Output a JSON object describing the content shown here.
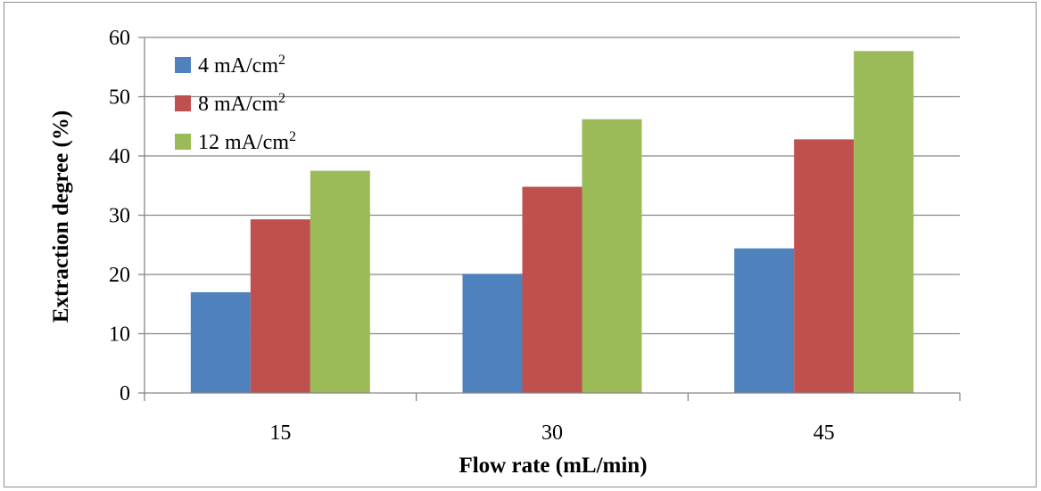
{
  "chart_data": {
    "type": "bar",
    "title": "",
    "xlabel": "Flow rate (mL/min)",
    "ylabel": "Extraction degree (%)",
    "categories": [
      "15",
      "30",
      "45"
    ],
    "ylim": [
      0,
      60
    ],
    "yticks": [
      0,
      10,
      20,
      30,
      40,
      50,
      60
    ],
    "grid": true,
    "legend_position": "top-left",
    "series": [
      {
        "name": "4 mA/cm",
        "sup": "2",
        "color": "#4f81bd",
        "values": [
          17,
          20.1,
          24.4
        ]
      },
      {
        "name": "8 mA/cm",
        "sup": "2",
        "color": "#c0504d",
        "values": [
          29.3,
          34.8,
          42.8
        ]
      },
      {
        "name": "12 mA/cm",
        "sup": "2",
        "color": "#9bbb59",
        "values": [
          37.5,
          46.2,
          57.7
        ]
      }
    ]
  }
}
